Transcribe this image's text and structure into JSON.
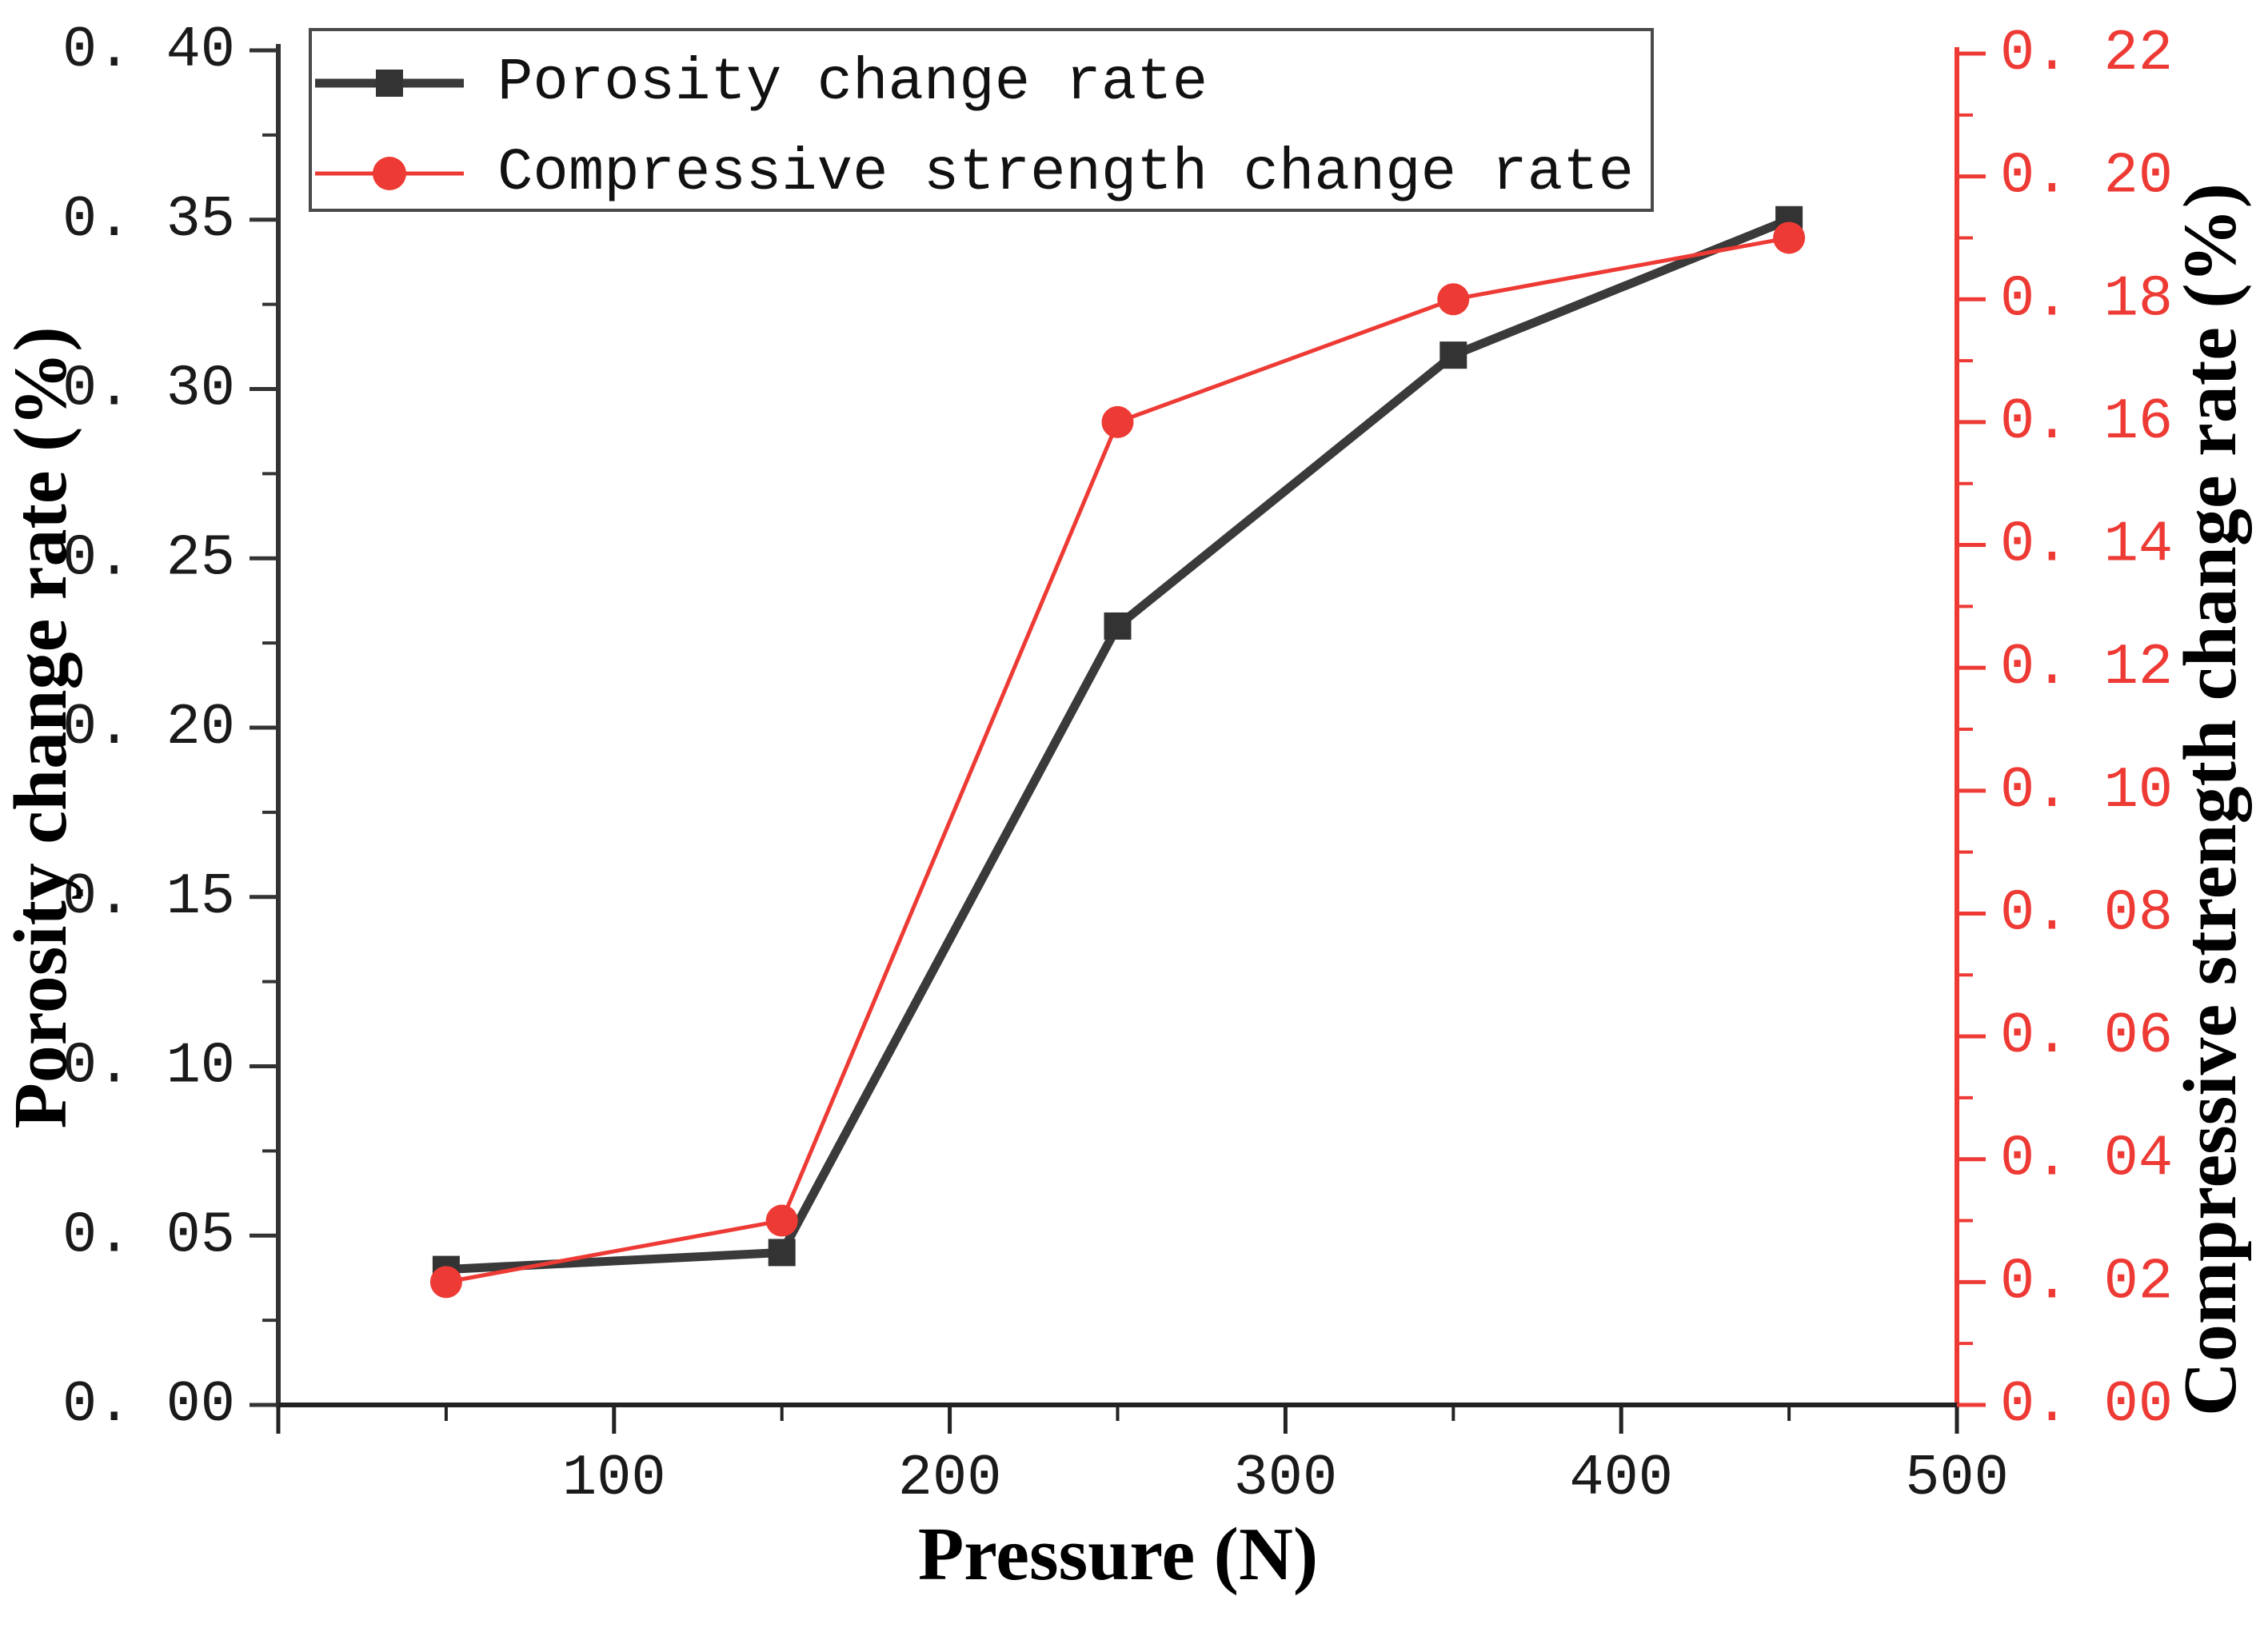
{
  "chart_data": {
    "type": "line",
    "title": "",
    "x": [
      100,
      200,
      300,
      400,
      500
    ],
    "xlabel": "Pressure (N)",
    "x_axis": {
      "min": 50,
      "max": 550,
      "major_tick_step": 100,
      "minor_tick_step": 50,
      "tick_labels": [
        "100",
        "200",
        "300",
        "400",
        "500"
      ],
      "color": "#1a1a1a"
    },
    "left_axis": {
      "label": "Porosity change rate (%)",
      "min": 0.0,
      "max": 0.4,
      "major_tick_step": 0.05,
      "minor_tick_step": 0.025,
      "tick_labels": [
        "0. 00",
        "0. 05",
        "0. 10",
        "0. 15",
        "0. 20",
        "0. 25",
        "0. 30",
        "0. 35",
        "0. 40"
      ],
      "color": "#333333",
      "label_color": "#1a1a1a"
    },
    "right_axis": {
      "label": "Compressive strength change rate (%)",
      "min": 0.0,
      "max": 0.22,
      "major_tick_step": 0.02,
      "minor_tick_step": 0.01,
      "tick_labels": [
        "0. 00",
        "0. 02",
        "0. 04",
        "0. 06",
        "0. 08",
        "0. 10",
        "0. 12",
        "0. 14",
        "0. 16",
        "0. 18",
        "0. 20",
        "0. 22"
      ],
      "color": "#ee3a34",
      "label_color": "#ee3a34"
    },
    "series": [
      {
        "name": "Porosity change rate",
        "axis": "left",
        "marker": "square",
        "color": "#3a3a3a",
        "marker_color": "#333333",
        "line_width": 11,
        "values": [
          0.04,
          0.045,
          0.23,
          0.31,
          0.35
        ]
      },
      {
        "name": "Compressive strength change rate",
        "axis": "right",
        "marker": "circle",
        "color": "#ee3a34",
        "marker_color": "#ee3a34",
        "line_width": 5,
        "values": [
          0.02,
          0.03,
          0.16,
          0.18,
          0.19
        ]
      }
    ],
    "legend": {
      "position": "top-left",
      "entries": [
        "Porosity change rate",
        "Compressive strength change rate"
      ]
    },
    "grid": false,
    "background": "#ffffff"
  }
}
